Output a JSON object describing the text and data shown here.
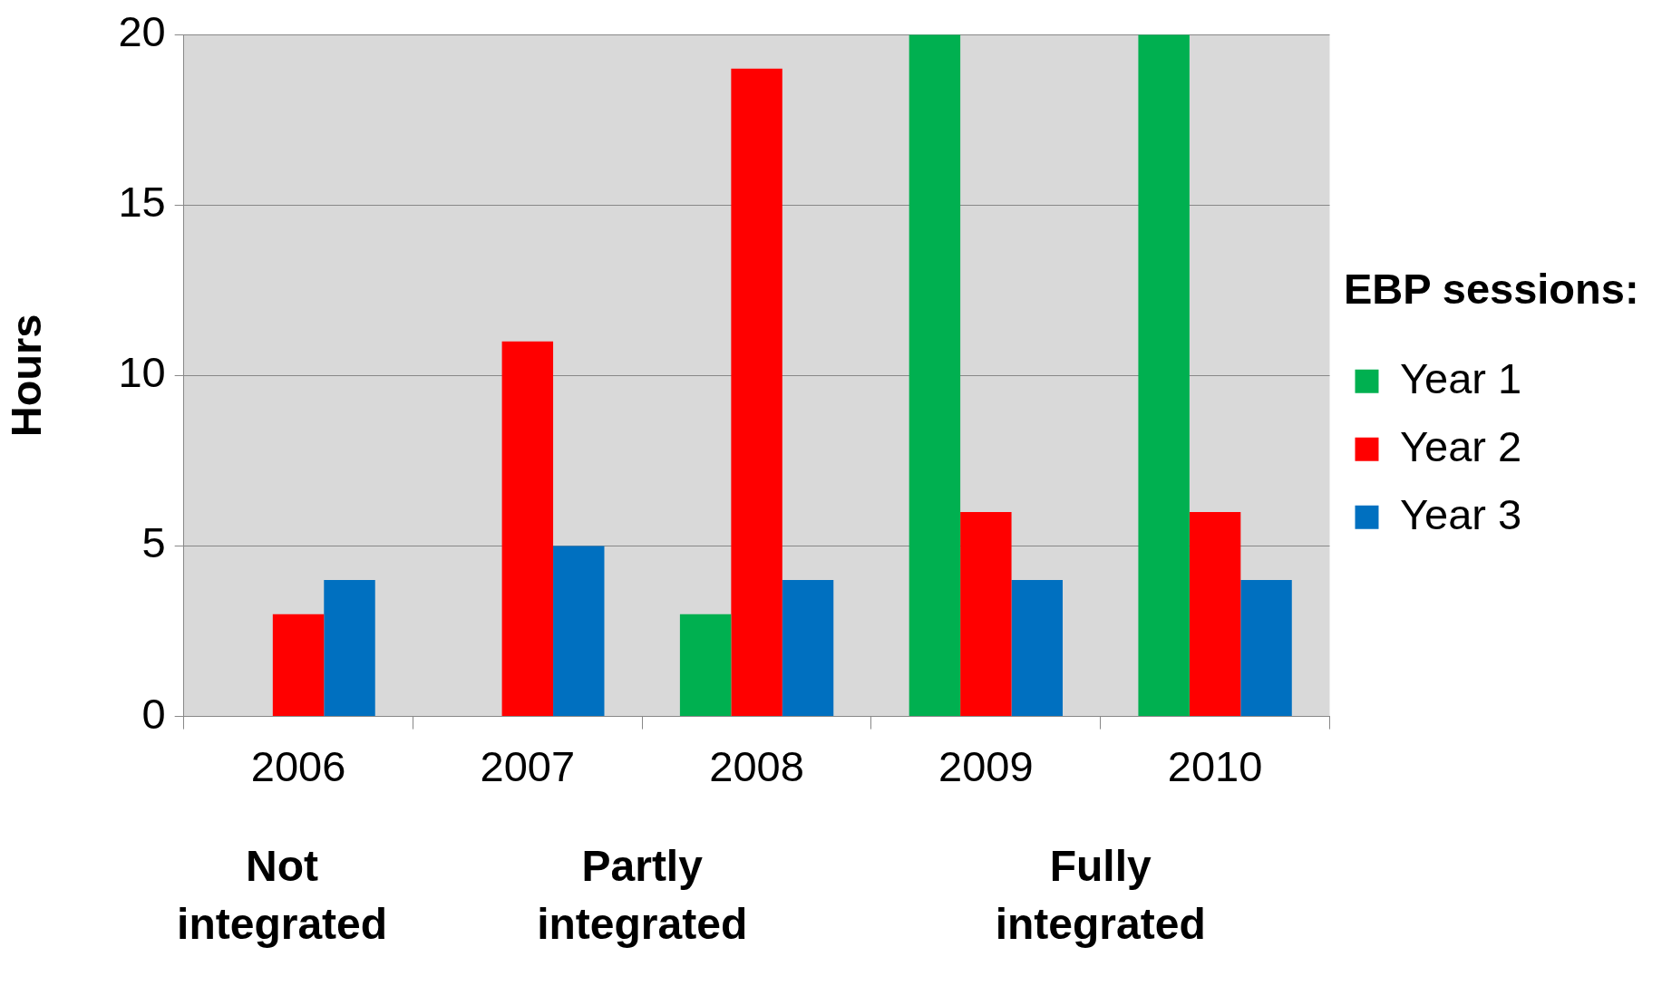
{
  "chart_data": {
    "type": "bar",
    "ylabel": "Hours",
    "legend_title": "EBP sessions:",
    "categories": [
      "2006",
      "2007",
      "2008",
      "2009",
      "2010"
    ],
    "series": [
      {
        "name": "Year 1",
        "color": "#00b050",
        "values": [
          null,
          null,
          3,
          20,
          20
        ]
      },
      {
        "name": "Year 2",
        "color": "#ff0000",
        "values": [
          3,
          11,
          19,
          6,
          6
        ]
      },
      {
        "name": "Year 3",
        "color": "#0070c0",
        "values": [
          4,
          5,
          4,
          4,
          4
        ]
      }
    ],
    "ylim": [
      0,
      20
    ],
    "yticks": [
      0,
      5,
      10,
      15,
      20
    ],
    "grid": "y",
    "legend": "right",
    "annotations": [
      "Not\nintegrated",
      "Partly\nintegrated",
      "Fully\nintegrated"
    ]
  }
}
